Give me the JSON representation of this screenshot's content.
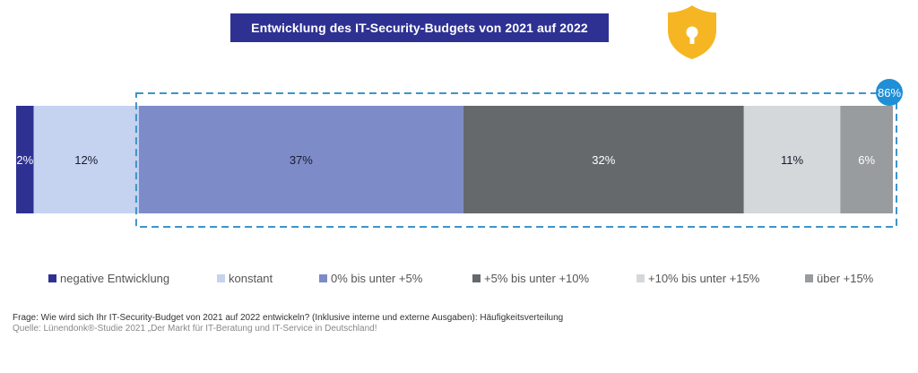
{
  "title": "Entwicklung des IT-Security-Budgets von 2021 auf 2022",
  "icons": {
    "badge": "shield-lock-icon"
  },
  "colors": {
    "title_bg": "#2e3192",
    "shield": "#f6b623",
    "highlight": "#3d93c9",
    "badge": "#1f8fd6"
  },
  "chart_data": {
    "type": "bar",
    "orientation": "horizontal-stacked-100",
    "title": "Entwicklung des IT-Security-Budgets von 2021 auf 2022",
    "categories": [
      "negative Entwicklung",
      "konstant",
      "0% bis unter +5%",
      "+5% bis unter +10%",
      "+10% bis unter +15%",
      "über +15%"
    ],
    "values": [
      2,
      12,
      37,
      32,
      11,
      6
    ],
    "labels": [
      "2%",
      "12%",
      "37%",
      "32%",
      "11%",
      "6%"
    ],
    "series_colors": [
      "#2e3192",
      "#c5d3f0",
      "#7d8bc9",
      "#65696c",
      "#d4d8db",
      "#999c9e"
    ],
    "label_colors": [
      "#ffffff",
      "#1a1a2e",
      "#1a1a2e",
      "#ffffff",
      "#1a1a2e",
      "#ffffff"
    ],
    "highlight": {
      "from_index": 2,
      "to_index": 5,
      "label": "86%",
      "value": 86
    },
    "legend": {
      "placement": "bottom",
      "entries": [
        "negative Entwicklung",
        "konstant",
        "0% bis unter +5%",
        "+5% bis unter +10%",
        "+10% bis unter +15%",
        "über +15%"
      ]
    },
    "xlabel": "",
    "ylabel": "",
    "xlim": [
      0,
      100
    ],
    "grid": false
  },
  "footnote": {
    "question": "Frage: Wie wird sich Ihr IT-Security-Budget von 2021 auf 2022 entwickeln? (Inklusive interne und externe Ausgaben): Häufigkeitsverteilung",
    "source": "Quelle: Lünendonk®-Studie 2021 „Der Markt für IT-Beratung und IT-Service in Deutschland!"
  }
}
